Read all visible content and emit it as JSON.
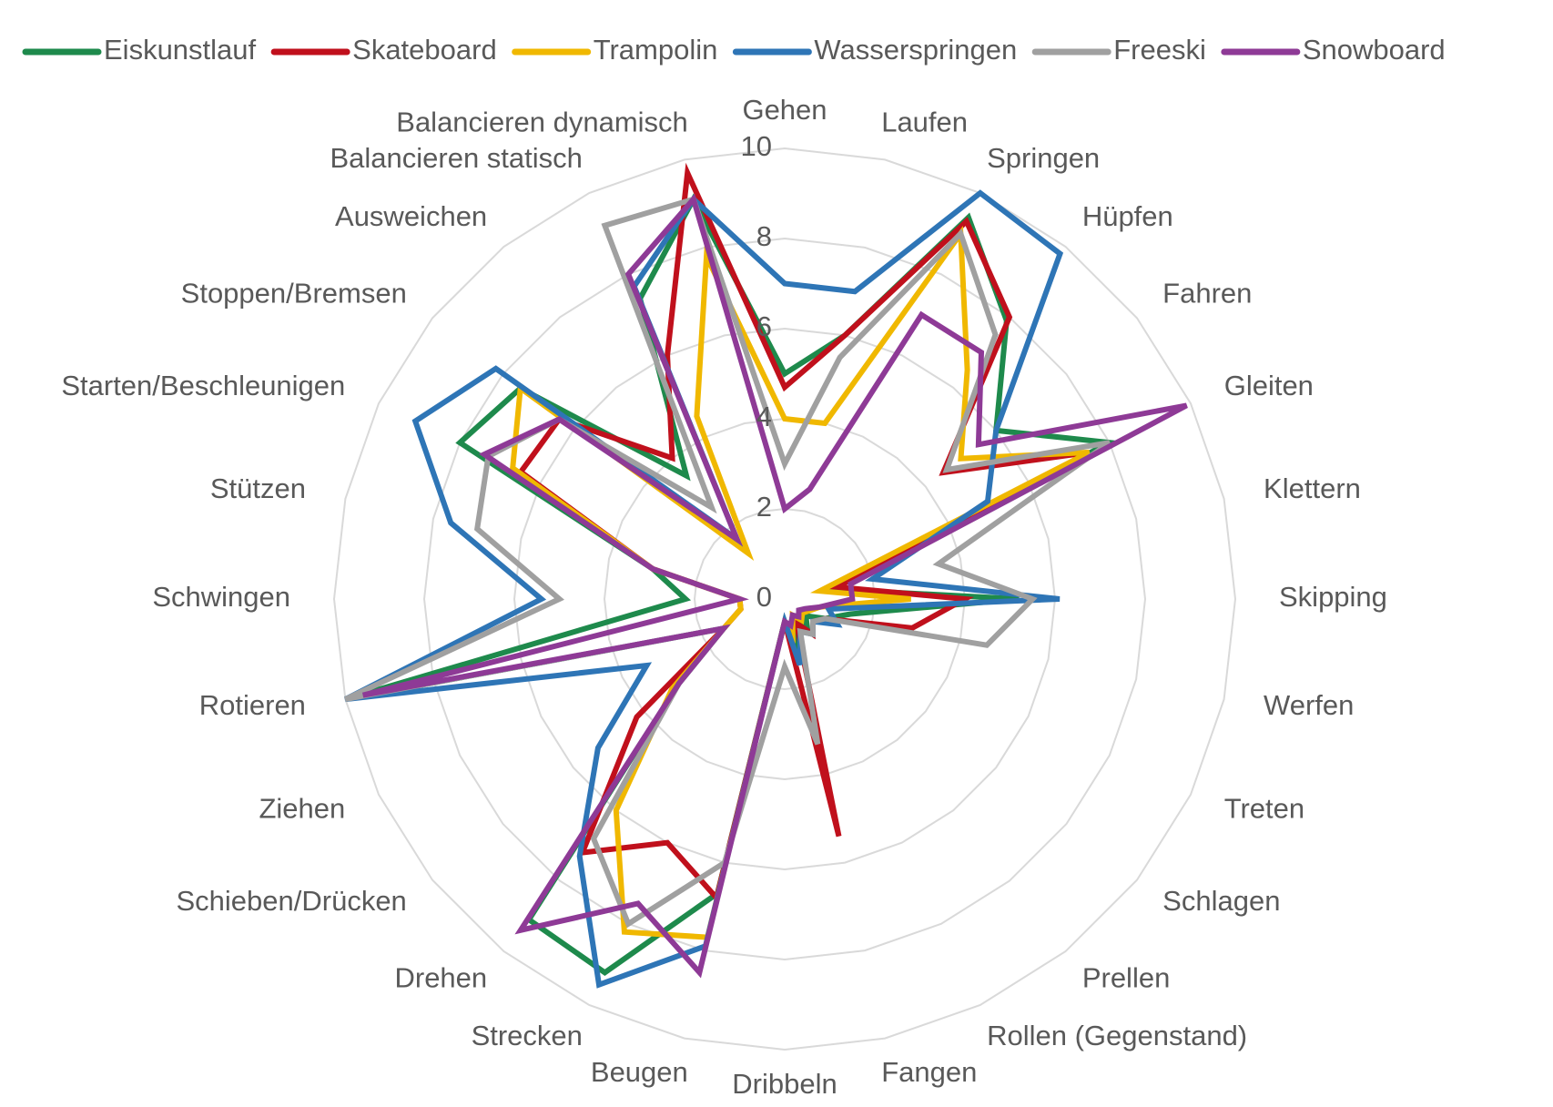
{
  "chart_data": {
    "type": "radar",
    "categories": [
      "Gehen",
      "Laufen",
      "Springen",
      "Hüpfen",
      "Fahren",
      "Gleiten",
      "Klettern",
      "Skipping",
      "Werfen",
      "Treten",
      "Schlagen",
      "Prellen",
      "Rollen (Gegenstand)",
      "Fangen",
      "Dribbeln",
      "Beugen",
      "Strecken",
      "Drehen",
      "Schieben/Drücken",
      "Ziehen",
      "Rotieren",
      "Schwingen",
      "Stützen",
      "Starten/Beschleunigen",
      "Stoppen/Bremsen",
      "Ausweichen",
      "Balancieren statisch",
      "Balancieren dynamisch"
    ],
    "series": [
      {
        "name": "Eiskunstlauf",
        "color": "#1e8a4c",
        "values": [
          5,
          6,
          9.4,
          7.9,
          6,
          8,
          1,
          5.2,
          1.5,
          1,
          0.6,
          0.8,
          0.5,
          1.2,
          0.5,
          6.7,
          9.2,
          9.1,
          3,
          1.5,
          10,
          2.2,
          3,
          8,
          7.5,
          3.5,
          7.4,
          9.1
        ]
      },
      {
        "name": "Skateboard",
        "color": "#c0101c",
        "values": [
          4.7,
          6,
          9.3,
          8,
          4.5,
          7.5,
          1.2,
          4,
          2.9,
          1,
          0.8,
          1,
          0.6,
          5.4,
          0.5,
          6.8,
          6,
          7.2,
          4.2,
          1.5,
          1,
          1,
          3,
          6.5,
          6.4,
          4,
          6,
          9.7
        ]
      },
      {
        "name": "Trampolin",
        "color": "#f0b800",
        "values": [
          4,
          4,
          9,
          6.5,
          5,
          7.5,
          0.8,
          2.8,
          0.8,
          0.6,
          0.5,
          0.6,
          0.4,
          0.8,
          0.5,
          7.7,
          8.2,
          6,
          3.2,
          1.5,
          1,
          1,
          3,
          6.7,
          7.5,
          1.3,
          4.5,
          7.8
        ]
      },
      {
        "name": "Wasserspringen",
        "color": "#2e75b6",
        "values": [
          7,
          7,
          10,
          9.8,
          6,
          5,
          2,
          6.1,
          1,
          1.3,
          0.8,
          1,
          0.8,
          1.5,
          0.5,
          7.9,
          9.5,
          7.3,
          5.3,
          3.4,
          10,
          5.4,
          7.6,
          9.1,
          8.2,
          1.7,
          7.7,
          9.1
        ]
      },
      {
        "name": "Freeski",
        "color": "#a0a0a0",
        "values": [
          3,
          5.5,
          9,
          7.5,
          4.6,
          8,
          3.5,
          5.5,
          4.6,
          1,
          0.8,
          1,
          0.8,
          3.3,
          1.5,
          6,
          8,
          6.8,
          3,
          1.5,
          10,
          5,
          7,
          7.3,
          6.4,
          2.6,
          9.2,
          9.1
        ]
      },
      {
        "name": "Snowboard",
        "color": "#8e3a96",
        "values": [
          2,
          2.5,
          7,
          7,
          5.5,
          9.9,
          1.5,
          1.5,
          0.8,
          0.5,
          0.4,
          0.5,
          0.4,
          0.6,
          0.5,
          8.5,
          7.5,
          9.4,
          3,
          1.5,
          9.6,
          1,
          3,
          7.4,
          6.4,
          1.7,
          8,
          9.1
        ]
      }
    ],
    "rlim": [
      0,
      10
    ],
    "rticks": [
      0,
      2,
      4,
      6,
      8,
      10
    ],
    "grid": true,
    "legend": "top"
  }
}
